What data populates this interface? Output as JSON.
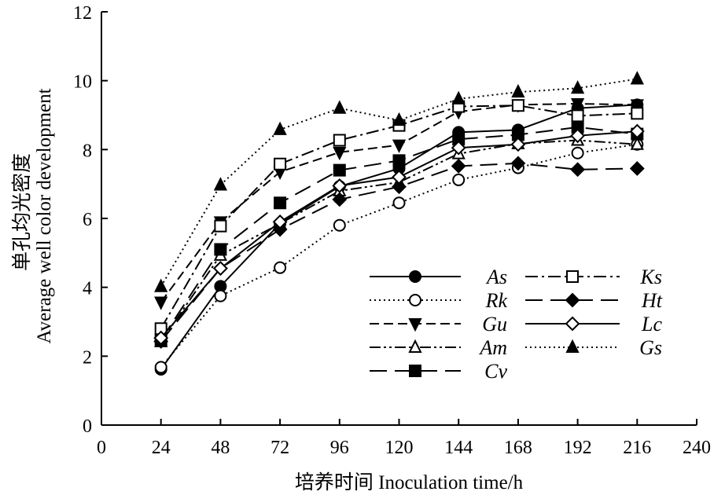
{
  "chart_data": {
    "type": "line",
    "xlabel": "培养时间 Inoculation time/h",
    "ylabel_cn": "单孔均光密度",
    "ylabel_en": "Average well color development",
    "xlim": [
      0,
      240
    ],
    "ylim": [
      0,
      12
    ],
    "xticks": [
      0,
      24,
      48,
      72,
      96,
      120,
      144,
      168,
      192,
      216,
      240
    ],
    "yticks": [
      0,
      2,
      4,
      6,
      8,
      10,
      12
    ],
    "grid": false,
    "legend_position": "bottom-right",
    "x": [
      24,
      48,
      72,
      96,
      120,
      144,
      168,
      192,
      216
    ],
    "series": [
      {
        "name": "As",
        "marker": "circle-filled",
        "dash": "solid",
        "values": [
          1.62,
          4.03,
          5.85,
          6.93,
          7.45,
          8.5,
          8.57,
          9.2,
          9.3
        ]
      },
      {
        "name": "Rk",
        "marker": "circle-open",
        "dash": "dotted",
        "values": [
          1.68,
          3.75,
          4.57,
          5.8,
          6.45,
          7.12,
          7.47,
          7.9,
          8.15
        ]
      },
      {
        "name": "Gu",
        "marker": "triangle-down-filled",
        "dash": "dashed",
        "values": [
          3.57,
          5.9,
          7.35,
          7.92,
          8.13,
          9.1,
          9.3,
          9.33,
          9.3
        ]
      },
      {
        "name": "Am",
        "marker": "triangle-open",
        "dash": "dash-dot-dot",
        "values": [
          2.42,
          4.93,
          5.85,
          6.8,
          7.05,
          7.88,
          8.17,
          8.27,
          8.15
        ]
      },
      {
        "name": "Cv",
        "marker": "square-filled",
        "dash": "long-dash",
        "values": [
          2.47,
          5.1,
          6.45,
          7.4,
          7.68,
          8.3,
          8.43,
          8.65,
          8.45
        ]
      },
      {
        "name": "Ks",
        "marker": "square-open",
        "dash": "dash-dot",
        "values": [
          2.8,
          5.78,
          7.58,
          8.27,
          8.7,
          9.25,
          9.28,
          8.98,
          9.05
        ]
      },
      {
        "name": "Ht",
        "marker": "diamond-filled",
        "dash": "long-dash",
        "values": [
          2.43,
          4.55,
          5.68,
          6.55,
          6.92,
          7.52,
          7.6,
          7.42,
          7.45
        ]
      },
      {
        "name": "Lc",
        "marker": "diamond-open",
        "dash": "solid",
        "values": [
          2.53,
          4.55,
          5.9,
          6.95,
          7.2,
          8.05,
          8.15,
          8.4,
          8.53
        ]
      },
      {
        "name": "Gs",
        "marker": "triangle-up-filled",
        "dash": "dotted",
        "values": [
          4.02,
          6.97,
          8.58,
          9.2,
          8.85,
          9.47,
          9.67,
          9.78,
          10.05
        ]
      }
    ]
  }
}
